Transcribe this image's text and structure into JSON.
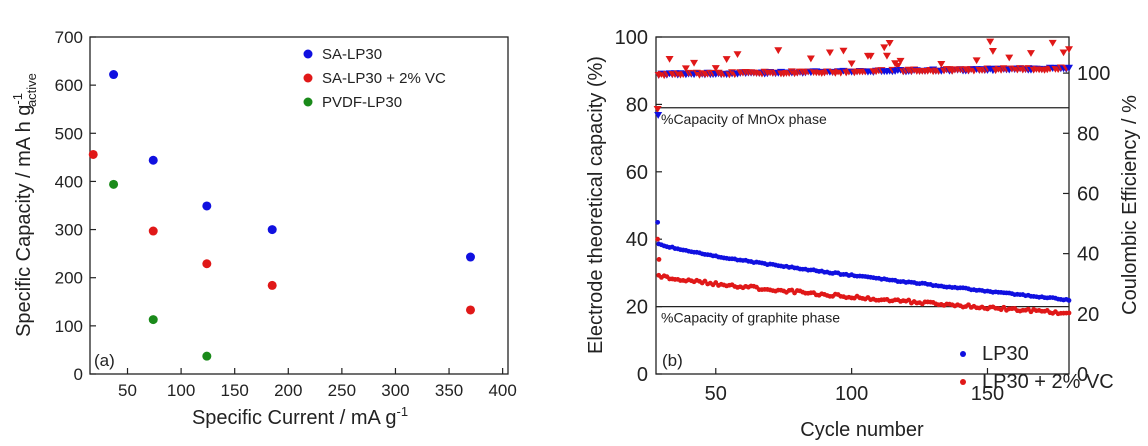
{
  "chart_data": [
    {
      "type": "scatter",
      "panel_label": "(a)",
      "xlabel": "Specific Current / mA g",
      "xlabel_sup": "-1",
      "ylabel": "Specific Capacity / mA h g",
      "ylabel_sup": "-1",
      "ylabel_sub": "active",
      "xlim": [
        15,
        405
      ],
      "ylim": [
        0,
        700
      ],
      "xticks": [
        50,
        100,
        150,
        200,
        250,
        300,
        350,
        400
      ],
      "yticks": [
        0,
        100,
        200,
        300,
        400,
        500,
        600,
        700
      ],
      "legend": "top-right",
      "series": [
        {
          "name": "SA-LP30",
          "color": "#1010e0",
          "x": [
            37,
            74,
            124,
            185,
            370
          ],
          "y": [
            622,
            444,
            349,
            300,
            243
          ]
        },
        {
          "name": "SA-LP30 + 2% VC",
          "color": "#e01818",
          "x": [
            18,
            74,
            124,
            185,
            370
          ],
          "y": [
            456,
            297,
            229,
            184,
            133
          ]
        },
        {
          "name": "PVDF-LP30",
          "color": "#1a8a1a",
          "x": [
            37,
            74,
            124
          ],
          "y": [
            394,
            113,
            37
          ]
        }
      ]
    },
    {
      "type": "scatter",
      "panel_label": "(b)",
      "xlabel": "Cycle number",
      "ylabel": "Electrode theoretical capacity (%)",
      "y2label": "Coulombic Efficiency / %",
      "xlim": [
        28,
        180
      ],
      "ylim": [
        0,
        100
      ],
      "y2lim": [
        0,
        112
      ],
      "xticks": [
        50,
        100,
        150
      ],
      "yticks": [
        0,
        20,
        40,
        60,
        80,
        100
      ],
      "y2ticks": [
        0,
        20,
        40,
        60,
        80,
        100
      ],
      "legend": "bottom-right",
      "reference_lines": [
        {
          "y": 79,
          "label": "%Capacity of MnOx phase"
        },
        {
          "y": 20,
          "label": "%Capacity of graphite phase"
        }
      ],
      "series": [
        {
          "name": "LP30",
          "color": "#1010e0",
          "marker": "circle",
          "capacity_start": 39,
          "capacity_end": 22,
          "first_cycle_value": 45,
          "ce_start": 99.5,
          "ce_end": 101.5
        },
        {
          "name": "LP30 + 2% VC",
          "color": "#e01818",
          "marker": "circle",
          "capacity_start": 29.5,
          "capacity_end": 18,
          "first_cycle_values": [
            40,
            34
          ],
          "ce_start": 99.5,
          "ce_end": 101.5
        }
      ]
    }
  ]
}
